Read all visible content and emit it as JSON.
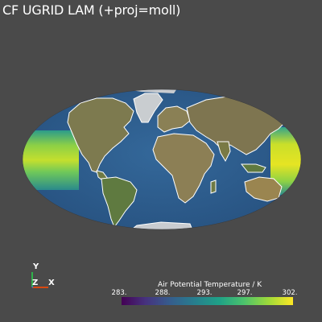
{
  "viewer": {
    "title": "CF UGRID LAM (+proj=moll)"
  },
  "orientation_axes": {
    "y_label": "Y",
    "z_label": "Z",
    "x_label": "X",
    "colors": {
      "x": "#d9480f",
      "y": "#2fb34a",
      "z": "#3b6fd9"
    }
  },
  "colorbar": {
    "title": "Air Potential Temperature / K",
    "colormap": "viridis",
    "ticks": [
      {
        "label": "283.",
        "value": 283
      },
      {
        "label": "288.",
        "value": 288
      },
      {
        "label": "293.",
        "value": 293
      },
      {
        "label": "297.",
        "value": 297
      },
      {
        "label": "302.",
        "value": 302
      }
    ],
    "range": [
      283,
      302
    ]
  },
  "map": {
    "projection": "mollweide",
    "background_color": "#4a4a4a",
    "ocean_color": "#2f5f8f",
    "land_color": "#7a7a50",
    "coastline_color": "#ffffff"
  }
}
